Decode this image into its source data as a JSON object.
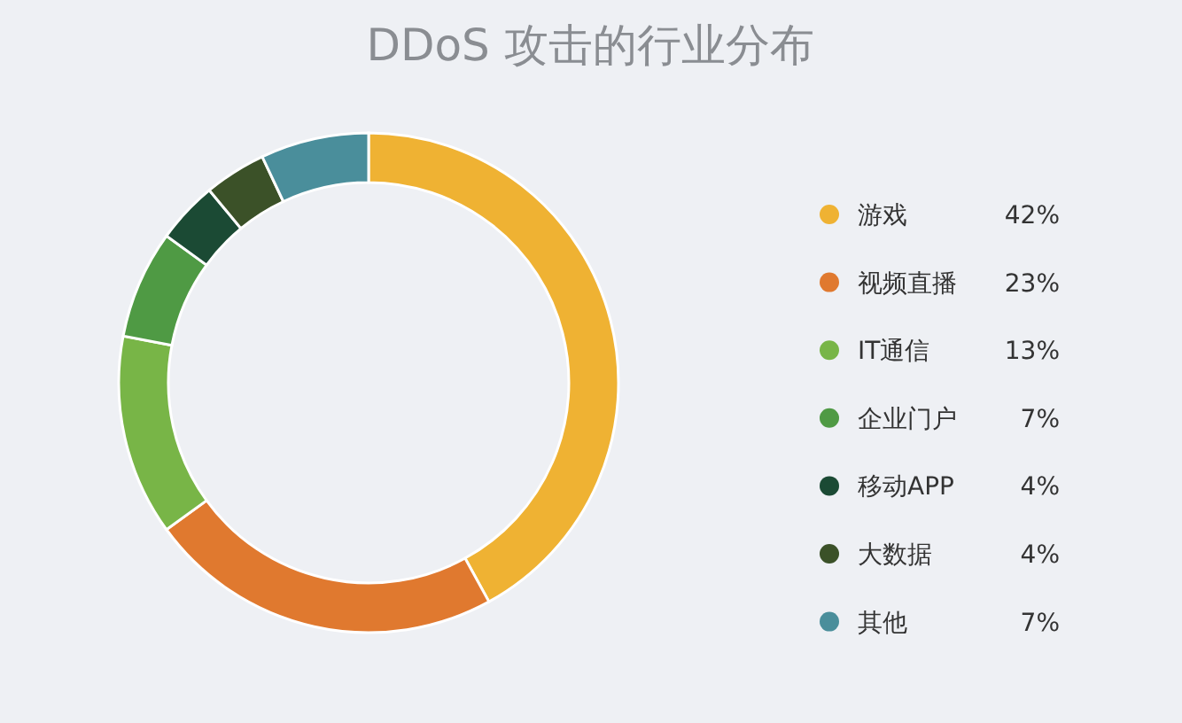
{
  "chart_data": {
    "type": "donut",
    "title": "DDoS 攻击的行业分布",
    "categories": [
      "游戏",
      "视频直播",
      "IT通信",
      "企业门户",
      "移动APP",
      "大数据",
      "其他"
    ],
    "values": [
      42,
      23,
      13,
      7,
      4,
      4,
      7
    ],
    "colors": [
      "#efb233",
      "#e0792f",
      "#78b547",
      "#4f9a44",
      "#1b4a34",
      "#3b5128",
      "#4a8e9b"
    ],
    "value_labels": [
      "42%",
      "23%",
      "13%",
      "7%",
      "4%",
      "4%",
      "7%"
    ],
    "legend": "right"
  }
}
